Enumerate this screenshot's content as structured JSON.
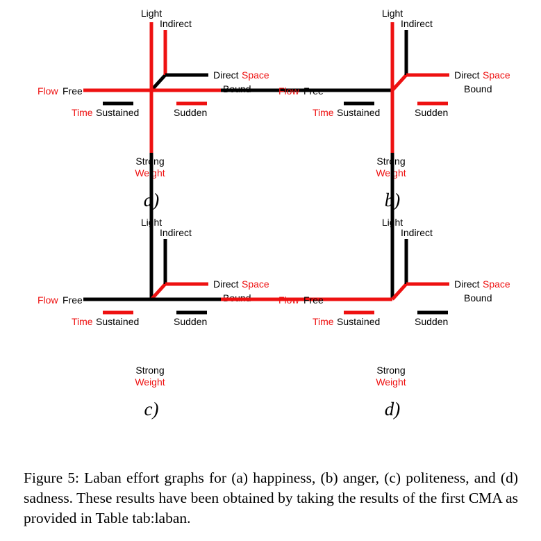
{
  "colors": {
    "red": "#ee1111",
    "black": "#000000"
  },
  "labels": {
    "light": "Light",
    "indirect": "Indirect",
    "direct": "Direct",
    "space": "Space",
    "bound": "Bound",
    "flow": "Flow",
    "free": "Free",
    "time": "Time",
    "sustained": "Sustained",
    "sudden": "Sudden",
    "strong": "Strong",
    "weight": "Weight"
  },
  "panels": [
    {
      "id": "a",
      "letter": "a)",
      "weight_up": "red",
      "weight_down": "black",
      "space_up": "red",
      "space_right": "black",
      "flow_free": "red",
      "flow_bound": "black",
      "time_sustained": "black",
      "time_sudden": "red"
    },
    {
      "id": "b",
      "letter": "b)",
      "weight_up": "black",
      "weight_down": "red",
      "space_up": "black",
      "space_right": "red",
      "flow_free": "red",
      "flow_bound": "black",
      "time_sustained": "black",
      "time_sudden": "red"
    },
    {
      "id": "c",
      "letter": "c)",
      "weight_up": "red",
      "weight_down": "black",
      "space_up": "black",
      "space_right": "red",
      "flow_free": "red",
      "flow_bound": "red",
      "time_sustained": "red",
      "time_sudden": "black"
    },
    {
      "id": "d",
      "letter": "d)",
      "weight_up": "red",
      "weight_down": "black",
      "space_up": "black",
      "space_right": "red",
      "flow_free": "black",
      "flow_bound": "red",
      "time_sustained": "red",
      "time_sudden": "black"
    }
  ],
  "caption": "Figure 5: Laban effort graphs for (a) happiness, (b) anger, (c) politeness, and (d) sadness. These results have been obtained by taking the results of the first CMA as provided in Table tab:laban."
}
